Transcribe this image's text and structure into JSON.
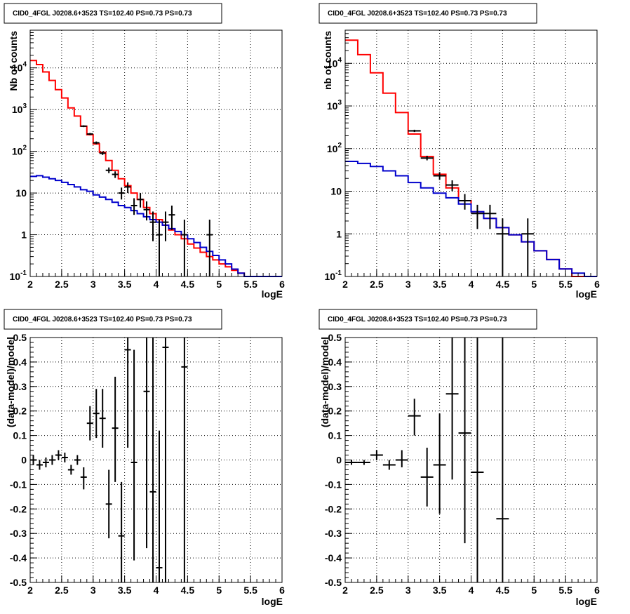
{
  "chart_data": [
    {
      "id": "top-left",
      "type": "line",
      "title": "CID0_4FGL J0208.6+3523 TS=102.40 PS=0.73 PS=0.73",
      "xlabel": "logE",
      "ylabel": "Nb of counts",
      "xlim": [
        2,
        6
      ],
      "ylim": [
        0.1,
        80000
      ],
      "yscale": "log",
      "grid": true,
      "x_ticks": [
        "2",
        "2.5",
        "3",
        "3.5",
        "4",
        "4.5",
        "5",
        "5.5",
        "6"
      ],
      "y_ticks": [
        "10^-1",
        "1",
        "10",
        "10^2",
        "10^3",
        "10^4"
      ],
      "series": [
        {
          "style": "step",
          "color": "#ff0000",
          "bin_edges": [
            2.0,
            2.1,
            2.2,
            2.3,
            2.4,
            2.5,
            2.6,
            2.7,
            2.8,
            2.9,
            3.0,
            3.1,
            3.2,
            3.3,
            3.4,
            3.5,
            3.6,
            3.7,
            3.8,
            3.9,
            4.0,
            4.1,
            4.2,
            4.3,
            4.4,
            4.5,
            4.6,
            4.7,
            4.8,
            4.9,
            5.0,
            5.1,
            5.2,
            5.3,
            5.4,
            5.5,
            5.6,
            5.7,
            5.8,
            5.9,
            6.0
          ],
          "values": [
            15000,
            12000,
            8000,
            5000,
            3000,
            1900,
            1100,
            700,
            400,
            250,
            150,
            95,
            60,
            35,
            22,
            15,
            10,
            7,
            4.5,
            3.2,
            2.3,
            1.7,
            1.3,
            1.0,
            0.8,
            0.6,
            0.48,
            0.38,
            0.3,
            0.25,
            0.2,
            0.17,
            0.14,
            0.12,
            0.1,
            0.1,
            0.1,
            0.1,
            0.1,
            0.1
          ]
        },
        {
          "style": "step",
          "color": "#0000cc",
          "bin_edges": [
            2.0,
            2.1,
            2.2,
            2.3,
            2.4,
            2.5,
            2.6,
            2.7,
            2.8,
            2.9,
            3.0,
            3.1,
            3.2,
            3.3,
            3.4,
            3.5,
            3.6,
            3.7,
            3.8,
            3.9,
            4.0,
            4.1,
            4.2,
            4.3,
            4.4,
            4.5,
            4.6,
            4.7,
            4.8,
            4.9,
            5.0,
            5.1,
            5.2,
            5.3,
            5.4,
            5.5,
            5.6,
            5.7,
            5.8,
            5.9,
            6.0
          ],
          "values": [
            25,
            26,
            24,
            22,
            20,
            18,
            16,
            14,
            12,
            11,
            9,
            8,
            7,
            6,
            5,
            4.5,
            3.8,
            3.2,
            2.7,
            2.3,
            2.0,
            1.7,
            1.4,
            1.2,
            1.0,
            0.8,
            0.65,
            0.5,
            0.4,
            0.32,
            0.25,
            0.2,
            0.15,
            0.12,
            0.1,
            0.1,
            0.1,
            0.1,
            0.1,
            0.1
          ]
        },
        {
          "style": "points",
          "color": "#000000",
          "points": [
            {
              "x": 2.85,
              "y": 400,
              "xerr": 0.05,
              "ylo": 380,
              "yhi": 420
            },
            {
              "x": 2.95,
              "y": 260,
              "xerr": 0.05,
              "ylo": 245,
              "yhi": 275
            },
            {
              "x": 3.05,
              "y": 160,
              "xerr": 0.05,
              "ylo": 148,
              "yhi": 172
            },
            {
              "x": 3.15,
              "y": 90,
              "xerr": 0.05,
              "ylo": 82,
              "yhi": 99
            },
            {
              "x": 3.25,
              "y": 35,
              "xerr": 0.05,
              "ylo": 30,
              "yhi": 41
            },
            {
              "x": 3.35,
              "y": 28,
              "xerr": 0.05,
              "ylo": 23,
              "yhi": 33
            },
            {
              "x": 3.45,
              "y": 10,
              "xerr": 0.05,
              "ylo": 7,
              "yhi": 13.5
            },
            {
              "x": 3.55,
              "y": 14,
              "xerr": 0.05,
              "ylo": 10,
              "yhi": 18
            },
            {
              "x": 3.65,
              "y": 5,
              "xerr": 0.05,
              "ylo": 3,
              "yhi": 7.5
            },
            {
              "x": 3.75,
              "y": 7,
              "xerr": 0.05,
              "ylo": 4.5,
              "yhi": 10
            },
            {
              "x": 3.85,
              "y": 4,
              "xerr": 0.05,
              "ylo": 2.2,
              "yhi": 6.3
            },
            {
              "x": 3.95,
              "y": 2,
              "xerr": 0.05,
              "ylo": 0.7,
              "yhi": 3.6
            },
            {
              "x": 4.05,
              "y": 1,
              "xerr": 0.05,
              "ylo": 0.1,
              "yhi": 2.3
            },
            {
              "x": 4.15,
              "y": 2,
              "xerr": 0.05,
              "ylo": 0.7,
              "yhi": 3.6
            },
            {
              "x": 4.25,
              "y": 3,
              "xerr": 0.05,
              "ylo": 1.3,
              "yhi": 5
            },
            {
              "x": 4.45,
              "y": 1,
              "xerr": 0.05,
              "ylo": 0.1,
              "yhi": 2.3
            },
            {
              "x": 4.85,
              "y": 1,
              "xerr": 0.05,
              "ylo": 0.1,
              "yhi": 2.3
            }
          ]
        }
      ]
    },
    {
      "id": "top-right",
      "type": "line",
      "title": "CID0_4FGL J0208.6+3523 TS=102.40 PS=0.73 PS=0.73",
      "xlabel": "logE",
      "ylabel": "nb of counts",
      "xlim": [
        2,
        6
      ],
      "ylim": [
        0.1,
        60000
      ],
      "yscale": "log",
      "grid": true,
      "x_ticks": [
        "2",
        "2.5",
        "3",
        "3.5",
        "4",
        "4.5",
        "5",
        "5.5",
        "6"
      ],
      "y_ticks": [
        "10^-1",
        "1",
        "10",
        "10^2",
        "10^3",
        "10^4"
      ],
      "series": [
        {
          "style": "step",
          "color": "#ff0000",
          "bin_edges": [
            2.0,
            2.2,
            2.4,
            2.6,
            2.8,
            3.0,
            3.2,
            3.4,
            3.6,
            3.8,
            4.0,
            4.2,
            4.4,
            4.6,
            4.8,
            5.0,
            5.2,
            5.4,
            5.6,
            5.8,
            6.0
          ],
          "values": [
            35000,
            16000,
            6000,
            2000,
            700,
            220,
            65,
            25,
            12,
            6,
            3.3,
            2.3,
            1.4,
            0.95,
            0.65,
            0.4,
            0.25,
            0.15,
            0.1,
            0.1
          ]
        },
        {
          "style": "step",
          "color": "#0000cc",
          "bin_edges": [
            2.0,
            2.2,
            2.4,
            2.6,
            2.8,
            3.0,
            3.2,
            3.4,
            3.6,
            3.8,
            4.0,
            4.2,
            4.4,
            4.6,
            4.8,
            5.0,
            5.2,
            5.4,
            5.6,
            5.8,
            6.0
          ],
          "values": [
            50,
            45,
            38,
            30,
            23,
            16,
            12,
            9,
            7,
            5,
            3.3,
            2.3,
            1.4,
            0.95,
            0.65,
            0.4,
            0.25,
            0.15,
            0.12,
            0.1
          ]
        },
        {
          "style": "points",
          "color": "#000000",
          "points": [
            {
              "x": 3.1,
              "y": 260,
              "xerr": 0.1,
              "ylo": 245,
              "yhi": 277
            },
            {
              "x": 3.3,
              "y": 60,
              "xerr": 0.1,
              "ylo": 53,
              "yhi": 68
            },
            {
              "x": 3.5,
              "y": 23,
              "xerr": 0.1,
              "ylo": 18.5,
              "yhi": 28
            },
            {
              "x": 3.7,
              "y": 14,
              "xerr": 0.1,
              "ylo": 10,
              "yhi": 18
            },
            {
              "x": 3.9,
              "y": 6,
              "xerr": 0.1,
              "ylo": 3.7,
              "yhi": 8.6
            },
            {
              "x": 4.1,
              "y": 3,
              "xerr": 0.1,
              "ylo": 1.3,
              "yhi": 4.8
            },
            {
              "x": 4.3,
              "y": 3,
              "xerr": 0.1,
              "ylo": 1.3,
              "yhi": 4.8
            },
            {
              "x": 4.5,
              "y": 1,
              "xerr": 0.1,
              "ylo": 0.1,
              "yhi": 2.3
            },
            {
              "x": 4.9,
              "y": 1,
              "xerr": 0.1,
              "ylo": 0.1,
              "yhi": 2.3
            }
          ]
        }
      ]
    },
    {
      "id": "bottom-left",
      "type": "scatter",
      "title": "CID0_4FGL J0208.6+3523 TS=102.40 PS=0.73 PS=0.73",
      "xlabel": "logE",
      "ylabel": "(data-model)/model",
      "xlim": [
        2,
        6
      ],
      "ylim": [
        -0.5,
        0.5
      ],
      "grid": true,
      "x_ticks": [
        "2",
        "2.5",
        "3",
        "3.5",
        "4",
        "4.5",
        "5",
        "5.5",
        "6"
      ],
      "y_ticks": [
        "-0.5",
        "-0.4",
        "-0.3",
        "-0.2",
        "-0.1",
        "0",
        "0.1",
        "0.2",
        "0.3",
        "0.4",
        "0.5"
      ],
      "series": [
        {
          "style": "points",
          "color": "#000000",
          "points": [
            {
              "x": 2.05,
              "y": 0.0,
              "xerr": 0.05,
              "ylo": -0.02,
              "yhi": 0.02
            },
            {
              "x": 2.15,
              "y": -0.02,
              "xerr": 0.05,
              "ylo": -0.04,
              "yhi": 0.0
            },
            {
              "x": 2.25,
              "y": -0.01,
              "xerr": 0.05,
              "ylo": -0.03,
              "yhi": 0.01
            },
            {
              "x": 2.35,
              "y": 0.0,
              "xerr": 0.05,
              "ylo": -0.02,
              "yhi": 0.02
            },
            {
              "x": 2.45,
              "y": 0.02,
              "xerr": 0.05,
              "ylo": 0.0,
              "yhi": 0.04
            },
            {
              "x": 2.55,
              "y": 0.01,
              "xerr": 0.05,
              "ylo": -0.01,
              "yhi": 0.03
            },
            {
              "x": 2.65,
              "y": -0.04,
              "xerr": 0.05,
              "ylo": -0.06,
              "yhi": -0.02
            },
            {
              "x": 2.75,
              "y": 0.0,
              "xerr": 0.05,
              "ylo": -0.02,
              "yhi": 0.02
            },
            {
              "x": 2.85,
              "y": -0.07,
              "xerr": 0.05,
              "ylo": -0.12,
              "yhi": -0.03
            },
            {
              "x": 2.95,
              "y": 0.15,
              "xerr": 0.05,
              "ylo": 0.08,
              "yhi": 0.22
            },
            {
              "x": 3.05,
              "y": 0.19,
              "xerr": 0.05,
              "ylo": 0.09,
              "yhi": 0.29
            },
            {
              "x": 3.15,
              "y": 0.17,
              "xerr": 0.05,
              "ylo": 0.05,
              "yhi": 0.29
            },
            {
              "x": 3.25,
              "y": -0.18,
              "xerr": 0.05,
              "ylo": -0.32,
              "yhi": -0.04
            },
            {
              "x": 3.35,
              "y": 0.13,
              "xerr": 0.05,
              "ylo": -0.09,
              "yhi": 0.34
            },
            {
              "x": 3.45,
              "y": -0.31,
              "xerr": 0.05,
              "ylo": -0.5,
              "yhi": -0.09
            },
            {
              "x": 3.55,
              "y": 0.45,
              "xerr": 0.05,
              "ylo": 0.05,
              "yhi": 0.5
            },
            {
              "x": 3.65,
              "y": -0.01,
              "xerr": 0.05,
              "ylo": -0.41,
              "yhi": 0.45
            },
            {
              "x": 3.85,
              "y": 0.28,
              "xerr": 0.05,
              "ylo": -0.36,
              "yhi": 0.5
            },
            {
              "x": 3.95,
              "y": -0.13,
              "xerr": 0.05,
              "ylo": -0.5,
              "yhi": 0.5
            },
            {
              "x": 4.05,
              "y": -0.44,
              "xerr": 0.05,
              "ylo": -0.5,
              "yhi": 0.12
            },
            {
              "x": 4.15,
              "y": 0.46,
              "xerr": 0.05,
              "ylo": -0.5,
              "yhi": 0.5
            },
            {
              "x": 4.45,
              "y": 0.38,
              "xerr": 0.05,
              "ylo": -0.5,
              "yhi": 0.5
            }
          ]
        }
      ]
    },
    {
      "id": "bottom-right",
      "type": "scatter",
      "title": "CID0_4FGL J0208.6+3523 TS=102.40 PS=0.73 PS=0.73",
      "xlabel": "logE",
      "ylabel": "(data-model)/model",
      "xlim": [
        2,
        6
      ],
      "ylim": [
        -0.5,
        0.5
      ],
      "grid": true,
      "x_ticks": [
        "2",
        "2.5",
        "3",
        "3.5",
        "4",
        "4.5",
        "5",
        "5.5",
        "6"
      ],
      "y_ticks": [
        "-0.5",
        "-0.4",
        "-0.3",
        "-0.2",
        "-0.1",
        "0",
        "0.1",
        "0.2",
        "0.3",
        "0.4",
        "0.5"
      ],
      "series": [
        {
          "style": "points",
          "color": "#000000",
          "points": [
            {
              "x": 2.1,
              "y": -0.01,
              "xerr": 0.1,
              "ylo": -0.02,
              "yhi": 0.0
            },
            {
              "x": 2.3,
              "y": -0.01,
              "xerr": 0.1,
              "ylo": -0.02,
              "yhi": 0.0
            },
            {
              "x": 2.5,
              "y": 0.02,
              "xerr": 0.1,
              "ylo": 0.0,
              "yhi": 0.04
            },
            {
              "x": 2.7,
              "y": -0.02,
              "xerr": 0.1,
              "ylo": -0.04,
              "yhi": 0.0
            },
            {
              "x": 2.9,
              "y": 0.0,
              "xerr": 0.1,
              "ylo": -0.03,
              "yhi": 0.04
            },
            {
              "x": 3.1,
              "y": 0.18,
              "xerr": 0.1,
              "ylo": 0.1,
              "yhi": 0.25
            },
            {
              "x": 3.3,
              "y": -0.07,
              "xerr": 0.1,
              "ylo": -0.19,
              "yhi": 0.05
            },
            {
              "x": 3.5,
              "y": -0.02,
              "xerr": 0.1,
              "ylo": -0.22,
              "yhi": 0.19
            },
            {
              "x": 3.7,
              "y": 0.27,
              "xerr": 0.1,
              "ylo": -0.08,
              "yhi": 0.5
            },
            {
              "x": 3.9,
              "y": 0.11,
              "xerr": 0.1,
              "ylo": -0.34,
              "yhi": 0.5
            },
            {
              "x": 4.1,
              "y": -0.05,
              "xerr": 0.1,
              "ylo": -0.5,
              "yhi": 0.5
            },
            {
              "x": 4.5,
              "y": -0.24,
              "xerr": 0.1,
              "ylo": -0.5,
              "yhi": 0.5
            }
          ]
        }
      ]
    }
  ]
}
